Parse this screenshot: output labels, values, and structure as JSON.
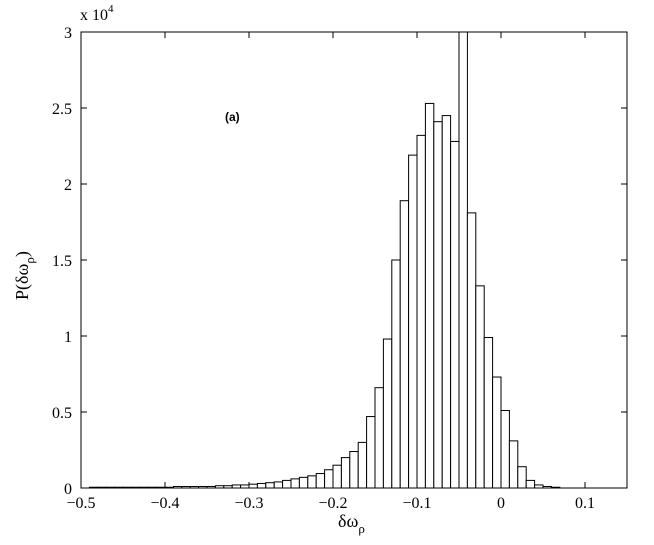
{
  "chart_data": {
    "type": "bar",
    "title": "",
    "annotation": "(a)",
    "xlabel": {
      "main": "δω",
      "sub": "ρ"
    },
    "ylabel": {
      "main": "P(δω",
      "sub": "ρ",
      "close": ")"
    },
    "y_multiplier": {
      "base": "x 10",
      "exponent": "4"
    },
    "xlim": [
      -0.5,
      0.15
    ],
    "ylim": [
      0,
      3
    ],
    "xticks": [
      -0.5,
      -0.4,
      -0.3,
      -0.2,
      -0.1,
      0,
      0.1
    ],
    "xtick_labels": [
      "−0.5",
      "−0.4",
      "−0.3",
      "−0.2",
      "−0.1",
      "0",
      "0.1"
    ],
    "yticks": [
      0,
      0.5,
      1,
      1.5,
      2,
      2.5,
      3
    ],
    "ytick_labels": [
      "0",
      "0.5",
      "1",
      "1.5",
      "2",
      "2.5",
      "3"
    ],
    "bin_width": 0.01,
    "bin_start": -0.49,
    "values": [
      0.005,
      0.005,
      0.005,
      0.005,
      0.005,
      0.005,
      0.005,
      0.005,
      0.005,
      0.005,
      0.01,
      0.01,
      0.01,
      0.01,
      0.01,
      0.015,
      0.015,
      0.02,
      0.02,
      0.025,
      0.03,
      0.035,
      0.04,
      0.05,
      0.06,
      0.07,
      0.08,
      0.095,
      0.12,
      0.15,
      0.2,
      0.24,
      0.3,
      0.47,
      0.66,
      0.98,
      1.5,
      1.89,
      2.19,
      2.32,
      2.53,
      2.41,
      2.45,
      2.28,
      3.0,
      1.81,
      1.33,
      0.99,
      0.73,
      0.51,
      0.31,
      0.14,
      0.05,
      0.02,
      0.01,
      0.005
    ],
    "grid": false,
    "legend": "none"
  }
}
